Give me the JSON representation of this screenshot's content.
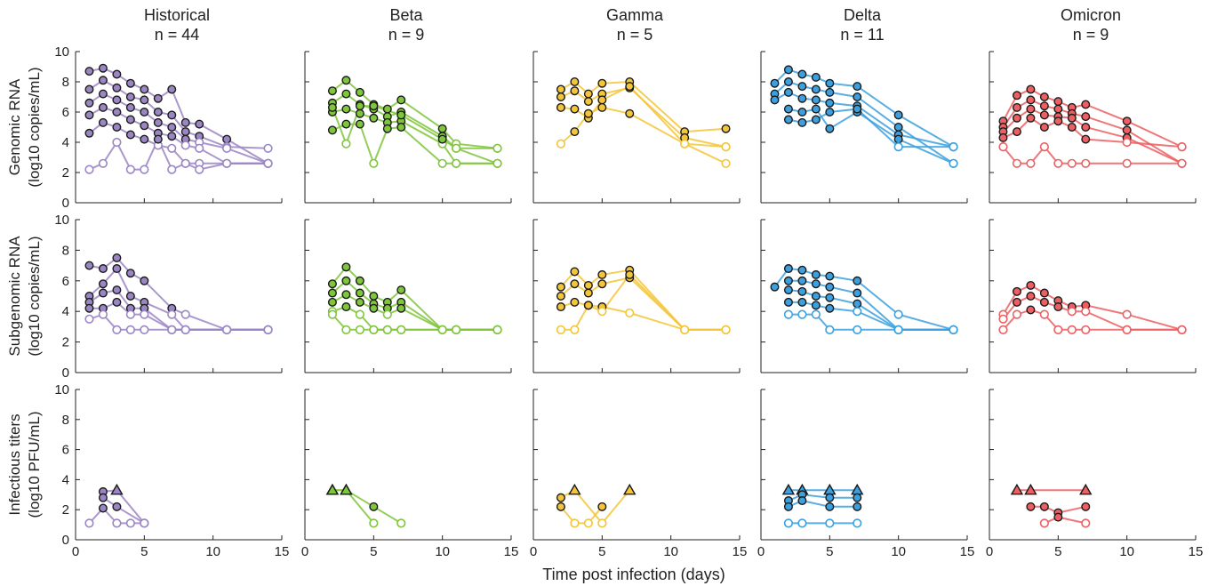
{
  "figure": {
    "xlabel": "Time post infection (days)",
    "row_ylabels": [
      [
        "Genomic RNA",
        "(log10 copies/mL)"
      ],
      [
        "Subgenomic RNA",
        "(log10 copies/mL)"
      ],
      [
        "Infectious titers",
        "(log10 PFU/mL)"
      ]
    ],
    "variants": [
      {
        "name": "Historical",
        "n_label": "n = 44",
        "color": "#9b86c4"
      },
      {
        "name": "Beta",
        "n_label": "n = 9",
        "color": "#7fc63a"
      },
      {
        "name": "Gamma",
        "n_label": "n = 5",
        "color": "#f3c53a"
      },
      {
        "name": "Delta",
        "n_label": "n = 11",
        "color": "#3ca0de"
      },
      {
        "name": "Omicron",
        "n_label": "n = 9",
        "color": "#ec5f62"
      }
    ],
    "x_ticks": [
      "0",
      "5",
      "10",
      "15"
    ],
    "y_ticks": [
      "0",
      "2",
      "4",
      "6",
      "8",
      "10"
    ],
    "xlim": [
      0,
      15
    ],
    "ylim": [
      0,
      10
    ],
    "marker_legend_note": ""
  },
  "chart_data": [
    {
      "type": "line",
      "panel": "Historical / Genomic RNA",
      "x": [
        1,
        2,
        3,
        4,
        5,
        6,
        7,
        8,
        9,
        11,
        14
      ],
      "series": [
        {
          "name": "",
          "values": [
            8.7,
            8.9,
            8.5,
            7.9,
            7.5,
            6.9,
            7.5,
            5.3,
            5.2,
            4.2,
            2.6
          ]
        },
        {
          "name": "",
          "values": [
            7.5,
            8.1,
            7.6,
            7.0,
            6.8,
            6.0,
            5.8,
            4.7,
            4.4,
            3.7,
            3.6
          ]
        },
        {
          "name": "",
          "values": [
            6.6,
            7.2,
            6.8,
            6.3,
            6.0,
            5.3,
            5.0,
            4.2,
            4.0,
            3.6,
            2.6
          ]
        },
        {
          "name": "",
          "values": [
            5.8,
            6.3,
            6.0,
            5.5,
            5.1,
            4.6,
            4.4,
            3.8,
            3.6,
            2.6,
            2.6
          ]
        },
        {
          "name": "",
          "values": [
            4.6,
            5.3,
            5.0,
            4.5,
            4.2,
            3.8,
            3.6,
            2.6,
            2.6,
            2.6,
            2.6
          ]
        },
        {
          "name": "",
          "values": [
            2.2,
            2.6,
            4.0,
            2.2,
            2.2,
            4.2,
            2.2,
            2.6,
            2.2,
            2.6,
            2.6
          ]
        }
      ],
      "open_markers_at_or_below": 4.0
    },
    {
      "type": "line",
      "panel": "Historical / Subgenomic RNA",
      "x": [
        1,
        2,
        3,
        4,
        5,
        7,
        8,
        11,
        14
      ],
      "series": [
        {
          "name": "",
          "values": [
            7.0,
            6.8,
            7.5,
            6.5,
            6.0,
            4.2,
            3.8,
            2.8,
            2.8
          ]
        },
        {
          "name": "",
          "values": [
            5.0,
            5.8,
            6.8,
            5.0,
            4.6,
            3.8,
            2.8,
            2.8,
            2.8
          ]
        },
        {
          "name": "",
          "values": [
            4.6,
            5.2,
            5.4,
            4.2,
            4.2,
            2.8,
            2.8,
            2.8,
            2.8
          ]
        },
        {
          "name": "",
          "values": [
            4.2,
            4.2,
            4.6,
            3.8,
            3.8,
            2.8,
            2.8,
            2.8,
            2.8
          ]
        },
        {
          "name": "",
          "values": [
            3.5,
            3.8,
            2.8,
            2.8,
            2.8,
            2.8,
            2.8,
            2.8,
            2.8
          ]
        }
      ],
      "open_markers_at_or_below": 4.0
    },
    {
      "type": "line",
      "panel": "Historical / Infectious titers",
      "x": [
        1,
        2,
        3,
        4,
        5
      ],
      "series": [
        {
          "name": "",
          "values": [
            null,
            3.2,
            3.3,
            null,
            1.1
          ]
        },
        {
          "name": "",
          "values": [
            null,
            2.8,
            2.2,
            null,
            1.1
          ]
        },
        {
          "name": "",
          "values": [
            1.1,
            2.1,
            1.1,
            1.1,
            1.1
          ]
        }
      ],
      "triangle_markers_at": 3.3,
      "open_markers_at_or_below": 1.2
    },
    {
      "type": "line",
      "panel": "Beta / Genomic RNA",
      "x": [
        2,
        3,
        4,
        5,
        6,
        7,
        10,
        11,
        14
      ],
      "series": [
        {
          "name": "",
          "values": [
            7.4,
            8.1,
            7.3,
            6.5,
            6.2,
            6.8,
            4.9,
            3.9,
            3.6
          ]
        },
        {
          "name": "",
          "values": [
            6.6,
            7.2,
            6.5,
            6.2,
            5.7,
            6.0,
            4.4,
            3.6,
            2.6
          ]
        },
        {
          "name": "",
          "values": [
            6.0,
            6.2,
            5.9,
            5.6,
            5.3,
            5.4,
            3.9,
            2.6,
            2.6
          ]
        },
        {
          "name": "",
          "values": [
            4.8,
            5.2,
            5.2,
            2.6,
            4.9,
            5.0,
            2.6,
            2.6,
            2.6
          ]
        },
        {
          "name": "",
          "values": [
            6.3,
            3.9,
            6.4,
            6.4,
            null,
            5.8,
            4.2,
            3.6,
            3.6
          ]
        }
      ],
      "open_markers_at_or_below": 4.0
    },
    {
      "type": "line",
      "panel": "Beta / Subgenomic RNA",
      "x": [
        2,
        3,
        4,
        5,
        6,
        7,
        10,
        11,
        14
      ],
      "series": [
        {
          "name": "",
          "values": [
            5.8,
            6.9,
            6.0,
            5.0,
            4.6,
            5.4,
            2.8,
            2.8,
            2.8
          ]
        },
        {
          "name": "",
          "values": [
            5.2,
            6.0,
            5.2,
            4.5,
            4.2,
            4.6,
            2.8,
            2.8,
            2.8
          ]
        },
        {
          "name": "",
          "values": [
            4.6,
            5.1,
            4.6,
            4.2,
            3.8,
            4.2,
            2.8,
            2.8,
            2.8
          ]
        },
        {
          "name": "",
          "values": [
            4.0,
            4.3,
            3.8,
            2.8,
            2.8,
            2.8,
            2.8,
            2.8,
            2.8
          ]
        },
        {
          "name": "",
          "values": [
            3.8,
            2.8,
            2.8,
            2.8,
            2.8,
            2.8,
            2.8,
            2.8,
            2.8
          ]
        }
      ],
      "open_markers_at_or_below": 4.0
    },
    {
      "type": "line",
      "panel": "Beta / Infectious titers",
      "x": [
        2,
        3,
        5,
        7
      ],
      "series": [
        {
          "name": "",
          "values": [
            3.3,
            3.3,
            2.2,
            1.1
          ]
        },
        {
          "name": "",
          "values": [
            3.3,
            3.3,
            1.1,
            null
          ]
        }
      ],
      "triangle_markers_at": 3.3,
      "open_markers_at_or_below": 1.2
    },
    {
      "type": "line",
      "panel": "Gamma / Genomic RNA",
      "x": [
        2,
        3,
        4,
        5,
        7,
        11,
        14
      ],
      "series": [
        {
          "name": "",
          "values": [
            7.5,
            8.0,
            7.2,
            7.9,
            8.0,
            4.7,
            4.9
          ]
        },
        {
          "name": "",
          "values": [
            7.0,
            7.4,
            6.7,
            7.2,
            7.6,
            4.3,
            3.7
          ]
        },
        {
          "name": "",
          "values": [
            6.3,
            6.2,
            5.6,
            6.8,
            7.7,
            3.9,
            2.6
          ]
        },
        {
          "name": "",
          "values": [
            3.9,
            4.7,
            5.9,
            6.3,
            5.9,
            3.9,
            3.7
          ]
        }
      ],
      "open_markers_at_or_below": 4.0
    },
    {
      "type": "line",
      "panel": "Gamma / Subgenomic RNA",
      "x": [
        2,
        3,
        4,
        5,
        7,
        11,
        14
      ],
      "series": [
        {
          "name": "",
          "values": [
            5.6,
            6.6,
            5.7,
            6.4,
            6.7,
            2.8,
            2.8
          ]
        },
        {
          "name": "",
          "values": [
            5.0,
            5.8,
            5.2,
            5.8,
            6.2,
            2.8,
            2.8
          ]
        },
        {
          "name": "",
          "values": [
            4.3,
            4.6,
            4.4,
            4.3,
            3.9,
            2.8,
            2.8
          ]
        },
        {
          "name": "",
          "values": [
            2.8,
            2.8,
            4.4,
            4.0,
            6.4,
            2.8,
            2.8
          ]
        }
      ],
      "open_markers_at_or_below": 4.0
    },
    {
      "type": "line",
      "panel": "Gamma / Infectious titers",
      "x": [
        2,
        3,
        4,
        5,
        7
      ],
      "series": [
        {
          "name": "",
          "values": [
            2.8,
            3.3,
            null,
            1.1,
            3.3
          ]
        },
        {
          "name": "",
          "values": [
            2.2,
            1.1,
            1.1,
            2.2,
            null
          ]
        }
      ],
      "triangle_markers_at": 3.3,
      "open_markers_at_or_below": 1.2
    },
    {
      "type": "line",
      "panel": "Delta / Genomic RNA",
      "x": [
        1,
        2,
        3,
        4,
        5,
        7,
        10,
        14
      ],
      "series": [
        {
          "name": "",
          "values": [
            7.9,
            8.8,
            8.5,
            8.3,
            7.9,
            7.7,
            5.8,
            3.7
          ]
        },
        {
          "name": "",
          "values": [
            7.2,
            8.0,
            7.7,
            7.5,
            7.3,
            7.0,
            5.0,
            2.6
          ]
        },
        {
          "name": "",
          "values": [
            6.8,
            7.3,
            6.9,
            6.8,
            6.6,
            6.4,
            4.5,
            3.7
          ]
        },
        {
          "name": "",
          "values": [
            null,
            6.2,
            6.0,
            6.2,
            4.9,
            6.0,
            4.2,
            2.6
          ]
        },
        {
          "name": "",
          "values": [
            null,
            5.5,
            5.3,
            5.5,
            6.0,
            6.2,
            3.7,
            3.7
          ]
        }
      ],
      "open_markers_at_or_below": 4.0
    },
    {
      "type": "line",
      "panel": "Delta / Subgenomic RNA",
      "x": [
        1,
        2,
        3,
        4,
        5,
        7,
        10,
        14
      ],
      "series": [
        {
          "name": "",
          "values": [
            5.6,
            6.8,
            6.7,
            6.4,
            6.3,
            6.0,
            3.8,
            2.8
          ]
        },
        {
          "name": "",
          "values": [
            null,
            6.0,
            6.0,
            5.8,
            5.6,
            5.2,
            2.8,
            2.8
          ]
        },
        {
          "name": "",
          "values": [
            null,
            5.4,
            5.3,
            5.0,
            4.9,
            4.5,
            2.8,
            2.8
          ]
        },
        {
          "name": "",
          "values": [
            null,
            4.6,
            4.6,
            4.4,
            4.2,
            4.0,
            2.8,
            2.8
          ]
        },
        {
          "name": "",
          "values": [
            null,
            3.8,
            3.8,
            3.8,
            2.8,
            2.8,
            2.8,
            2.8
          ]
        }
      ],
      "open_markers_at_or_below": 4.0
    },
    {
      "type": "line",
      "panel": "Delta / Infectious titers",
      "x": [
        2,
        3,
        5,
        7
      ],
      "series": [
        {
          "name": "",
          "values": [
            3.3,
            3.3,
            3.3,
            3.3
          ]
        },
        {
          "name": "",
          "values": [
            2.6,
            3.0,
            2.8,
            2.8
          ]
        },
        {
          "name": "",
          "values": [
            2.2,
            2.6,
            2.2,
            2.2
          ]
        },
        {
          "name": "",
          "values": [
            1.1,
            1.1,
            1.1,
            1.1
          ]
        }
      ],
      "triangle_markers_at": 3.3,
      "open_markers_at_or_below": 1.2
    },
    {
      "type": "line",
      "panel": "Omicron / Genomic RNA",
      "x": [
        1,
        2,
        3,
        4,
        5,
        6,
        7,
        10,
        14
      ],
      "series": [
        {
          "name": "",
          "values": [
            5.4,
            7.1,
            7.5,
            7.0,
            6.7,
            6.3,
            6.5,
            5.4,
            3.7
          ]
        },
        {
          "name": "",
          "values": [
            5.0,
            6.3,
            6.8,
            6.4,
            6.2,
            5.9,
            5.7,
            4.8,
            2.6
          ]
        },
        {
          "name": "",
          "values": [
            4.7,
            5.6,
            6.2,
            5.8,
            5.7,
            5.6,
            5.0,
            4.3,
            2.6
          ]
        },
        {
          "name": "",
          "values": [
            4.3,
            4.7,
            5.6,
            5.0,
            5.4,
            5.0,
            4.2,
            4.0,
            3.7
          ]
        },
        {
          "name": "",
          "values": [
            3.7,
            2.6,
            2.6,
            3.7,
            2.6,
            2.6,
            2.6,
            2.6,
            2.6
          ]
        }
      ],
      "open_markers_at_or_below": 4.0
    },
    {
      "type": "line",
      "panel": "Omicron / Subgenomic RNA",
      "x": [
        1,
        2,
        3,
        4,
        5,
        6,
        7,
        10,
        14
      ],
      "series": [
        {
          "name": "",
          "values": [
            3.8,
            5.3,
            5.7,
            5.2,
            4.7,
            4.3,
            4.4,
            3.8,
            2.8
          ]
        },
        {
          "name": "",
          "values": [
            3.5,
            4.6,
            5.0,
            4.6,
            4.3,
            4.0,
            4.0,
            2.8,
            2.8
          ]
        },
        {
          "name": "",
          "values": [
            2.8,
            3.8,
            4.1,
            3.8,
            2.8,
            2.8,
            2.8,
            2.8,
            2.8
          ]
        }
      ],
      "open_markers_at_or_below": 4.0
    },
    {
      "type": "line",
      "panel": "Omicron / Infectious titers",
      "x": [
        2,
        3,
        4,
        5,
        7
      ],
      "series": [
        {
          "name": "",
          "values": [
            3.3,
            3.3,
            null,
            null,
            3.3
          ]
        },
        {
          "name": "",
          "values": [
            null,
            2.2,
            2.2,
            1.8,
            2.2
          ]
        },
        {
          "name": "",
          "values": [
            null,
            null,
            1.1,
            1.5,
            1.1
          ]
        }
      ],
      "triangle_markers_at": 3.3,
      "open_markers_at_or_below": 1.2
    }
  ]
}
